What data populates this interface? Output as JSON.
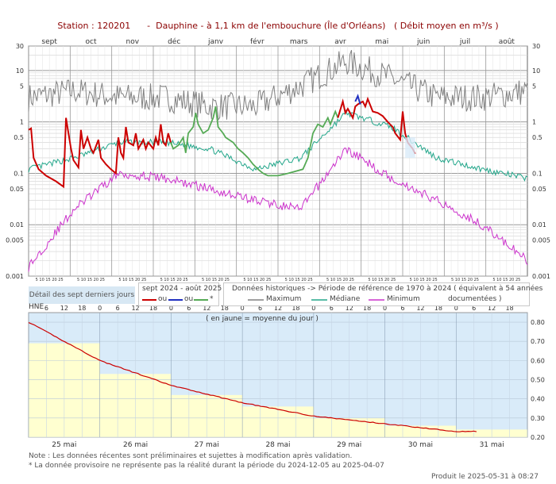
{
  "header": {
    "title": "Station : 120201      -  Dauphine - à 1,1 km de l'embouchure (Île d'Orléans)   ( Débit moyen en m³/s )"
  },
  "top_chart": {
    "months": [
      "sept",
      "oct",
      "nov",
      "déc",
      "janv",
      "févr",
      "mars",
      "avr",
      "mai",
      "juin",
      "juil",
      "août"
    ],
    "y_ticks": [
      "30",
      "10",
      "5",
      "1",
      "0.5",
      "0.1",
      "0.05",
      "0.01",
      "0.005",
      "0.001"
    ],
    "day_ticks": "5 10 15 20 25"
  },
  "legend": {
    "detail_label": "Détail des sept derniers jours",
    "current_title": "sept 2024 - août 2025",
    "current_items": [
      "ou",
      "ou",
      "*"
    ],
    "hist_title": "Données historiques -> Période de référence  de 1970 à 2024   ( équivalent à 54 années",
    "hist_subtitle": "documentées )",
    "hist_items": [
      "Maximum",
      "Médiane",
      "Minimum"
    ]
  },
  "bottom_chart": {
    "hne_label": "HNE",
    "hour_ticks": [
      "6",
      "12",
      "18",
      "0",
      "6",
      "12",
      "18",
      "0",
      "6",
      "12",
      "18",
      "0",
      "6",
      "12",
      "18",
      "0",
      "6",
      "12",
      "18",
      "0",
      "6",
      "12",
      "18",
      "0",
      "6",
      "12",
      "18"
    ],
    "y_ticks": [
      "0.80",
      "0.70",
      "0.60",
      "0.50",
      "0.40",
      "0.30",
      "0.20"
    ],
    "note_inside": "( en jaune = moyenne du jour )",
    "days": [
      "25 mai",
      "26 mai",
      "27 mai",
      "28 mai",
      "29 mai",
      "30 mai",
      "31 mai"
    ]
  },
  "footer": {
    "note1": "Note : Les données récentes sont préliminaires et sujettes à modification après validation.",
    "note2": "* La donnée provisoire ne représente pas la réalité durant la période du 2024-12-05 au 2025-04-07",
    "produced": "Produit le 2025-05-31 à 08:27"
  },
  "colors": {
    "current": "#cc0000",
    "provisional_blue": "#2030c0",
    "corrected_green": "#55aa55",
    "maximum": "#808080",
    "median": "#22a68a",
    "minimum": "#cc33cc",
    "daily_mean_fill": "#ffffd0",
    "sky": "#d9ebf9"
  },
  "chart_data": [
    {
      "type": "line",
      "title": "Débit moyen en m³/s",
      "scale": "log",
      "ylim": [
        0.001,
        30
      ],
      "x": [
        "sept",
        "oct",
        "nov",
        "déc",
        "janv",
        "févr",
        "mars",
        "avr",
        "mai",
        "juin",
        "juil",
        "août"
      ],
      "series": [
        {
          "name": "Maximum",
          "values": [
            3,
            4,
            3,
            3,
            2,
            2,
            5,
            15,
            7,
            3,
            3,
            4
          ]
        },
        {
          "name": "Médiane",
          "values": [
            0.12,
            0.2,
            0.4,
            0.4,
            0.3,
            0.12,
            0.2,
            1.5,
            0.8,
            0.2,
            0.12,
            0.08
          ]
        },
        {
          "name": "Minimum",
          "values": [
            0.0015,
            0.02,
            0.1,
            0.08,
            0.05,
            0.03,
            0.02,
            0.3,
            0.08,
            0.03,
            0.01,
            0.002
          ]
        }
      ]
    },
    {
      "type": "line",
      "title": "Détail des sept derniers jours",
      "ylim": [
        0.2,
        0.85
      ],
      "x": [
        "25 mai",
        "26 mai",
        "27 mai",
        "28 mai",
        "29 mai",
        "30 mai",
        "31 mai"
      ],
      "series": [
        {
          "name": "moyenne du jour",
          "values": [
            0.69,
            0.53,
            0.42,
            0.36,
            0.3,
            0.26,
            0.24
          ]
        },
        {
          "name": "débit",
          "values": [
            0.8,
            0.6,
            0.47,
            0.38,
            0.31,
            0.27,
            0.23
          ]
        }
      ]
    }
  ]
}
